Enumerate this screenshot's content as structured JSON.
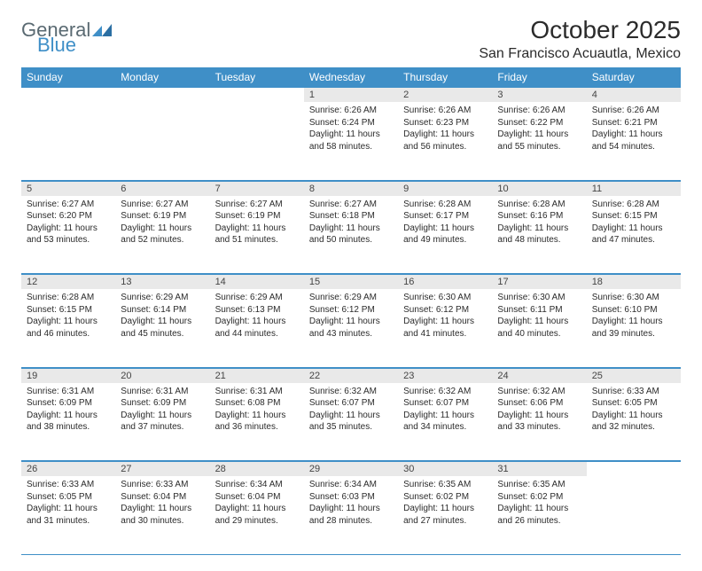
{
  "logo": {
    "line1": "General",
    "line2": "Blue"
  },
  "header": {
    "title": "October 2025",
    "location": "San Francisco Acuautla, Mexico"
  },
  "colors": {
    "header_bg": "#3f8fc7",
    "header_text": "#ffffff",
    "daynum_bg": "#e9e9e9",
    "border": "#3f8fc7",
    "text": "#2b2b2b",
    "logo_grey": "#5a6a72",
    "logo_blue": "#3f8fc7"
  },
  "typography": {
    "title_fontsize": 28,
    "location_fontsize": 16,
    "dow_fontsize": 12,
    "cell_fontsize": 10
  },
  "days_of_week": [
    "Sunday",
    "Monday",
    "Tuesday",
    "Wednesday",
    "Thursday",
    "Friday",
    "Saturday"
  ],
  "weeks": [
    [
      null,
      null,
      null,
      {
        "n": 1,
        "sunrise": "6:26 AM",
        "sunset": "6:24 PM",
        "daylight": "11 hours and 58 minutes."
      },
      {
        "n": 2,
        "sunrise": "6:26 AM",
        "sunset": "6:23 PM",
        "daylight": "11 hours and 56 minutes."
      },
      {
        "n": 3,
        "sunrise": "6:26 AM",
        "sunset": "6:22 PM",
        "daylight": "11 hours and 55 minutes."
      },
      {
        "n": 4,
        "sunrise": "6:26 AM",
        "sunset": "6:21 PM",
        "daylight": "11 hours and 54 minutes."
      }
    ],
    [
      {
        "n": 5,
        "sunrise": "6:27 AM",
        "sunset": "6:20 PM",
        "daylight": "11 hours and 53 minutes."
      },
      {
        "n": 6,
        "sunrise": "6:27 AM",
        "sunset": "6:19 PM",
        "daylight": "11 hours and 52 minutes."
      },
      {
        "n": 7,
        "sunrise": "6:27 AM",
        "sunset": "6:19 PM",
        "daylight": "11 hours and 51 minutes."
      },
      {
        "n": 8,
        "sunrise": "6:27 AM",
        "sunset": "6:18 PM",
        "daylight": "11 hours and 50 minutes."
      },
      {
        "n": 9,
        "sunrise": "6:28 AM",
        "sunset": "6:17 PM",
        "daylight": "11 hours and 49 minutes."
      },
      {
        "n": 10,
        "sunrise": "6:28 AM",
        "sunset": "6:16 PM",
        "daylight": "11 hours and 48 minutes."
      },
      {
        "n": 11,
        "sunrise": "6:28 AM",
        "sunset": "6:15 PM",
        "daylight": "11 hours and 47 minutes."
      }
    ],
    [
      {
        "n": 12,
        "sunrise": "6:28 AM",
        "sunset": "6:15 PM",
        "daylight": "11 hours and 46 minutes."
      },
      {
        "n": 13,
        "sunrise": "6:29 AM",
        "sunset": "6:14 PM",
        "daylight": "11 hours and 45 minutes."
      },
      {
        "n": 14,
        "sunrise": "6:29 AM",
        "sunset": "6:13 PM",
        "daylight": "11 hours and 44 minutes."
      },
      {
        "n": 15,
        "sunrise": "6:29 AM",
        "sunset": "6:12 PM",
        "daylight": "11 hours and 43 minutes."
      },
      {
        "n": 16,
        "sunrise": "6:30 AM",
        "sunset": "6:12 PM",
        "daylight": "11 hours and 41 minutes."
      },
      {
        "n": 17,
        "sunrise": "6:30 AM",
        "sunset": "6:11 PM",
        "daylight": "11 hours and 40 minutes."
      },
      {
        "n": 18,
        "sunrise": "6:30 AM",
        "sunset": "6:10 PM",
        "daylight": "11 hours and 39 minutes."
      }
    ],
    [
      {
        "n": 19,
        "sunrise": "6:31 AM",
        "sunset": "6:09 PM",
        "daylight": "11 hours and 38 minutes."
      },
      {
        "n": 20,
        "sunrise": "6:31 AM",
        "sunset": "6:09 PM",
        "daylight": "11 hours and 37 minutes."
      },
      {
        "n": 21,
        "sunrise": "6:31 AM",
        "sunset": "6:08 PM",
        "daylight": "11 hours and 36 minutes."
      },
      {
        "n": 22,
        "sunrise": "6:32 AM",
        "sunset": "6:07 PM",
        "daylight": "11 hours and 35 minutes."
      },
      {
        "n": 23,
        "sunrise": "6:32 AM",
        "sunset": "6:07 PM",
        "daylight": "11 hours and 34 minutes."
      },
      {
        "n": 24,
        "sunrise": "6:32 AM",
        "sunset": "6:06 PM",
        "daylight": "11 hours and 33 minutes."
      },
      {
        "n": 25,
        "sunrise": "6:33 AM",
        "sunset": "6:05 PM",
        "daylight": "11 hours and 32 minutes."
      }
    ],
    [
      {
        "n": 26,
        "sunrise": "6:33 AM",
        "sunset": "6:05 PM",
        "daylight": "11 hours and 31 minutes."
      },
      {
        "n": 27,
        "sunrise": "6:33 AM",
        "sunset": "6:04 PM",
        "daylight": "11 hours and 30 minutes."
      },
      {
        "n": 28,
        "sunrise": "6:34 AM",
        "sunset": "6:04 PM",
        "daylight": "11 hours and 29 minutes."
      },
      {
        "n": 29,
        "sunrise": "6:34 AM",
        "sunset": "6:03 PM",
        "daylight": "11 hours and 28 minutes."
      },
      {
        "n": 30,
        "sunrise": "6:35 AM",
        "sunset": "6:02 PM",
        "daylight": "11 hours and 27 minutes."
      },
      {
        "n": 31,
        "sunrise": "6:35 AM",
        "sunset": "6:02 PM",
        "daylight": "11 hours and 26 minutes."
      },
      null
    ]
  ],
  "labels": {
    "sunrise": "Sunrise:",
    "sunset": "Sunset:",
    "daylight": "Daylight:"
  }
}
